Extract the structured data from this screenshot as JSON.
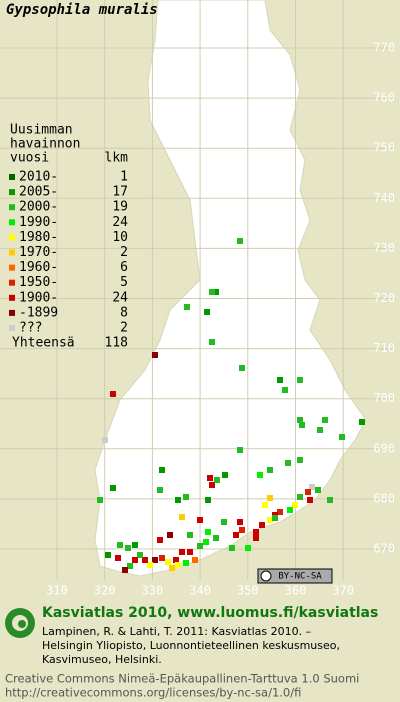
{
  "title": "Gypsophila muralis",
  "legend": {
    "header": [
      "Uusimman",
      "havainnon",
      "vuosi"
    ],
    "count_header": "lkm",
    "rows": [
      {
        "label": "2010-",
        "count": 1,
        "color": "#006600"
      },
      {
        "label": "2005-",
        "count": 17,
        "color": "#009900"
      },
      {
        "label": "2000-",
        "count": 19,
        "color": "#22bb22"
      },
      {
        "label": "1990-",
        "count": 24,
        "color": "#00ee00"
      },
      {
        "label": "1980-",
        "count": 10,
        "color": "#ffff00"
      },
      {
        "label": "1970-",
        "count": 2,
        "color": "#ffcc00"
      },
      {
        "label": "1960-",
        "count": 6,
        "color": "#ff6600"
      },
      {
        "label": "1950-",
        "count": 5,
        "color": "#dd2200"
      },
      {
        "label": "1900-",
        "count": 24,
        "color": "#cc0000"
      },
      {
        "label": "-1899",
        "count": 8,
        "color": "#880000"
      },
      {
        "label": "???",
        "count": 2,
        "color": "#cccccc"
      }
    ],
    "total": {
      "label": "Yhteensä",
      "count": 118
    }
  },
  "x_labels": [
    "310",
    "320",
    "330",
    "340",
    "350",
    "360",
    "370"
  ],
  "y_labels": [
    "770",
    "760",
    "750",
    "740",
    "730",
    "720",
    "710",
    "700",
    "690",
    "680",
    "670"
  ],
  "badge": "BY-NC-SA",
  "footer": {
    "heading": "Kasviatlas 2010, www.luomus.fi/kasviatlas",
    "citation": [
      "Lampinen, R. & Lahti, T. 2011: Kasviatlas 2010. –",
      "Helsingin Yliopisto, Luonnontieteellinen keskusmuseo,",
      "Kasvimuseo, Helsinki."
    ],
    "license": [
      "Creative Commons Nimeä-Epäkaupallinen-Tarttuva 1.0 Suomi",
      "http://creativecommons.org/licenses/by-nc-sa/1.0/fi"
    ]
  }
}
